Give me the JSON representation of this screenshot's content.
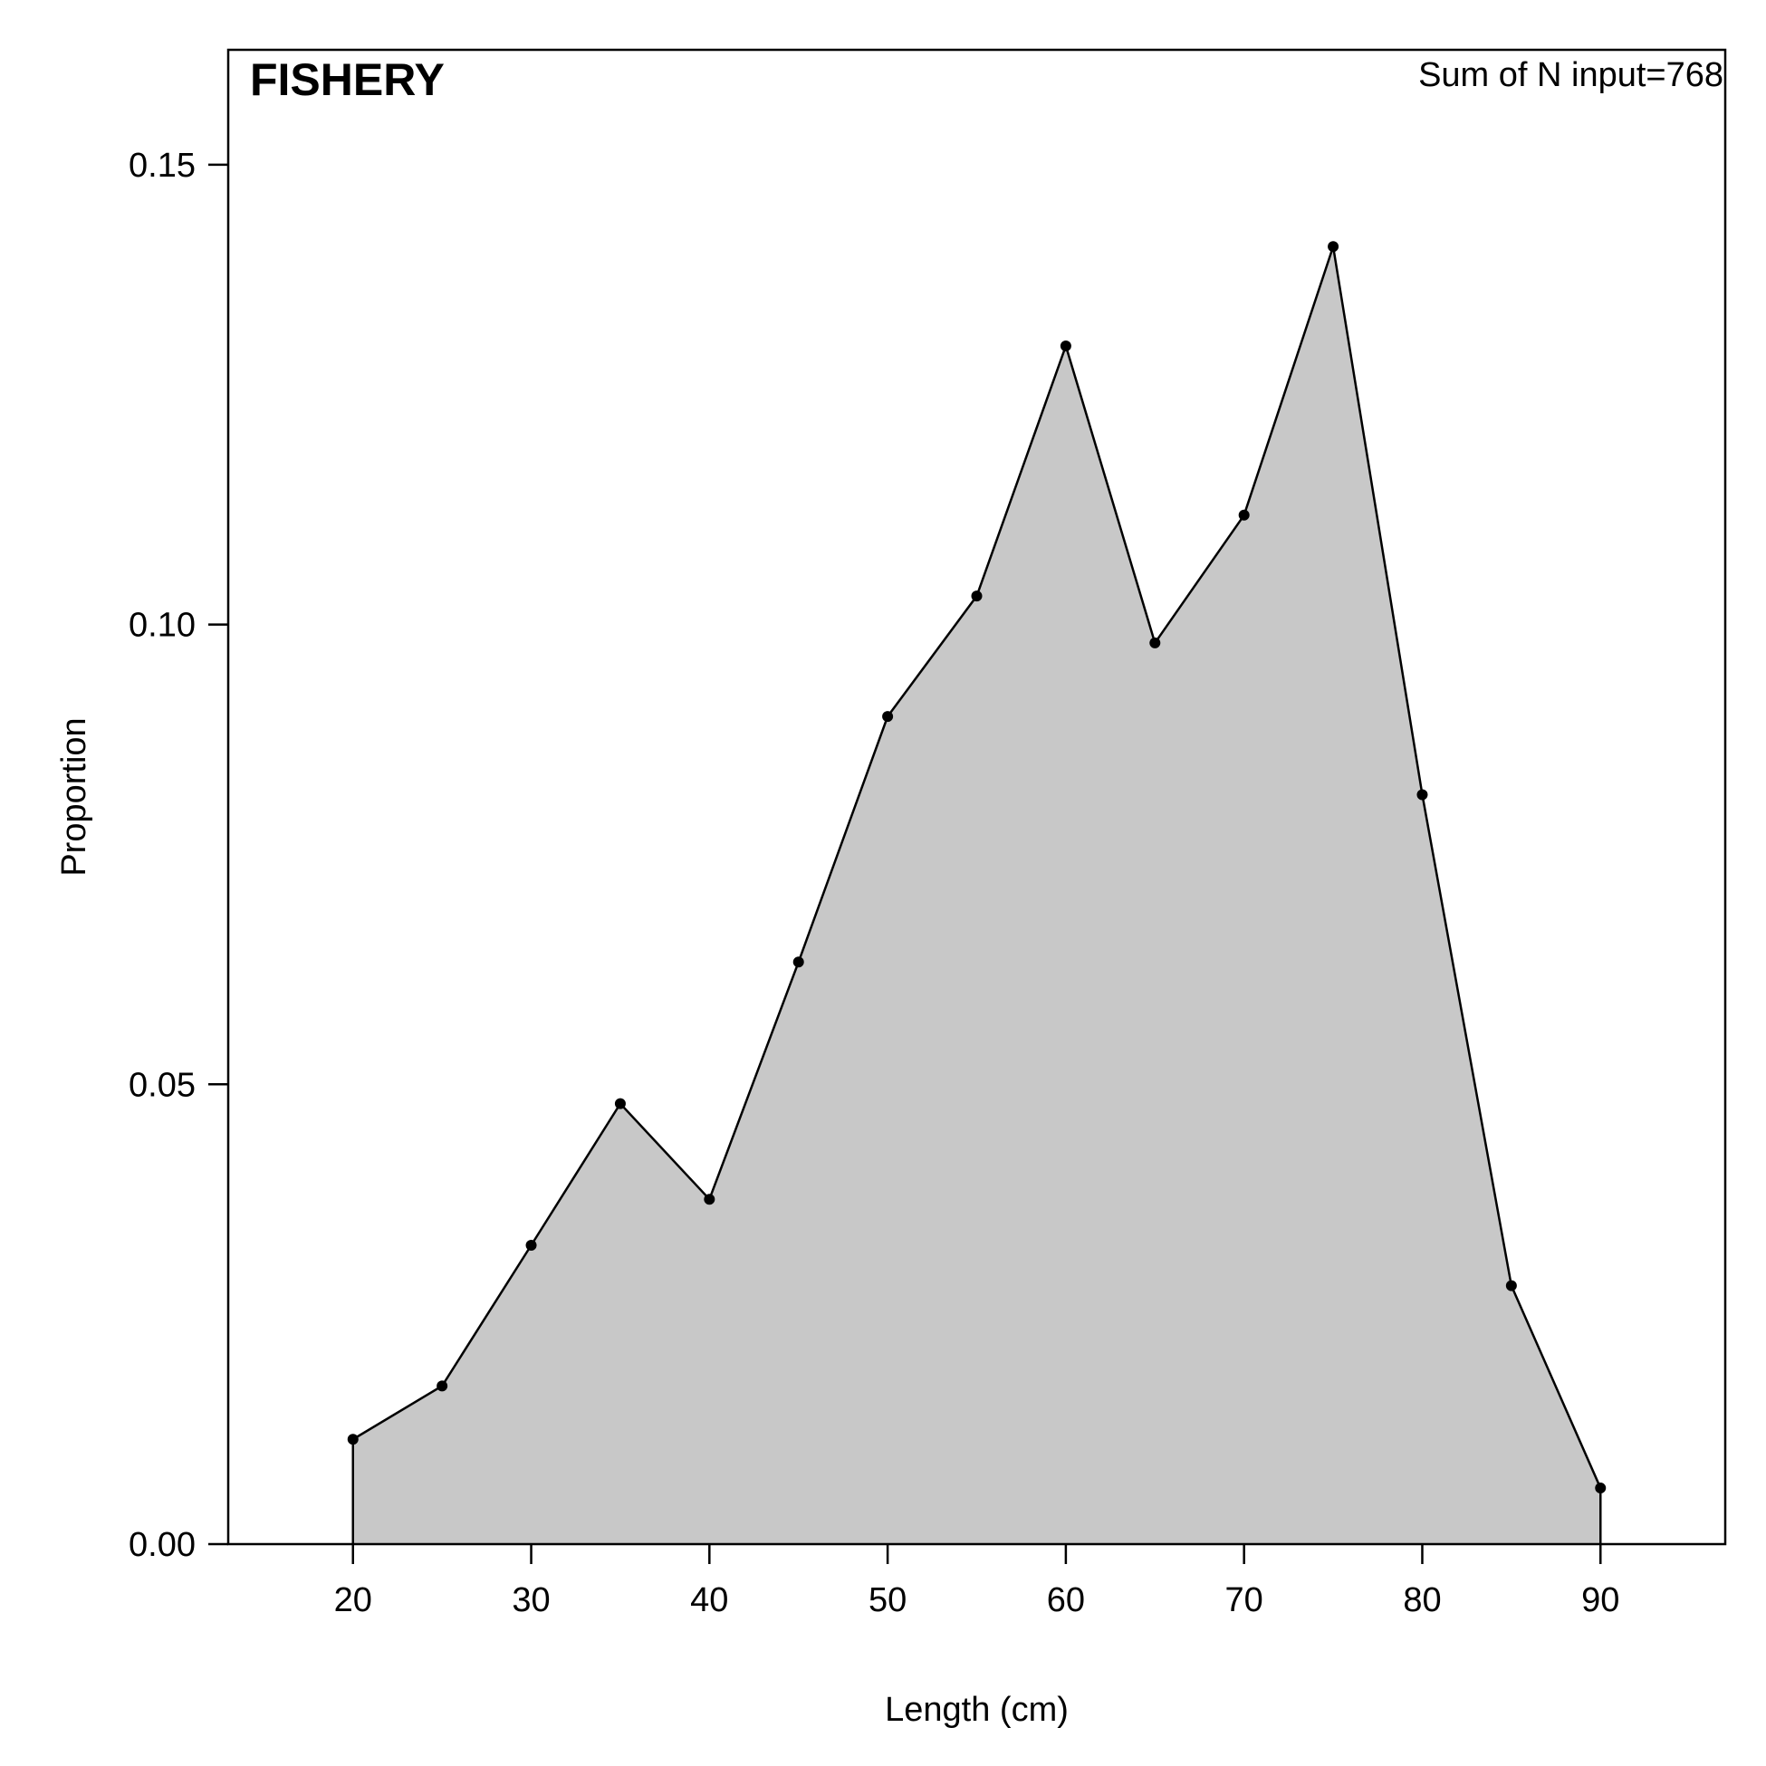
{
  "chart_data": {
    "type": "area",
    "title": "FISHERY",
    "annotation": "Sum of N input=768",
    "xlabel": "Length (cm)",
    "ylabel": "Proportion",
    "xlim": [
      13,
      97
    ],
    "ylim": [
      0,
      0.1625
    ],
    "x_ticks": [
      20,
      30,
      40,
      50,
      60,
      70,
      80,
      90
    ],
    "x_tick_labels": [
      "20",
      "30",
      "40",
      "50",
      "60",
      "70",
      "80",
      "90"
    ],
    "y_ticks": [
      0,
      0.05,
      0.1,
      0.15
    ],
    "y_tick_labels": [
      "0.00",
      "0.05",
      "0.10",
      "0.15"
    ],
    "grid": false,
    "series": [
      {
        "x": [
          20,
          25,
          30,
          35,
          40,
          45,
          50,
          55,
          60,
          65,
          70,
          75,
          80,
          85,
          90
        ],
        "values": [
          0.0114,
          0.0172,
          0.0325,
          0.0479,
          0.0375,
          0.0633,
          0.09,
          0.1031,
          0.1303,
          0.098,
          0.1119,
          0.1411,
          0.0815,
          0.0281,
          0.0061
        ]
      }
    ],
    "colors": {
      "fill": "#c8c8c8",
      "line": "#000000",
      "points": "#000000",
      "frame": "#000000"
    }
  }
}
